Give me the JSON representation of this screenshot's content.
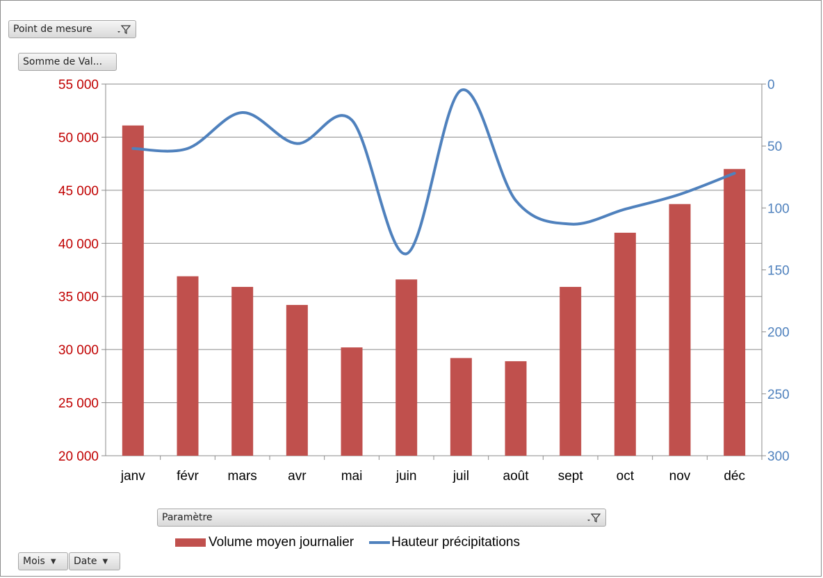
{
  "pivot": {
    "report_filter": "Point de mesure",
    "values_field": "Somme de Val...",
    "legend_field": "Paramètre",
    "axis_fields": [
      "Mois",
      "Date"
    ]
  },
  "colors": {
    "bar": "#c0504d",
    "line": "#4f81bd",
    "left_axis": "#c00000",
    "right_axis": "#4f81bd"
  },
  "chart_data": {
    "type": "bar",
    "categories": [
      "janv",
      "févr",
      "mars",
      "avr",
      "mai",
      "juin",
      "juil",
      "août",
      "sept",
      "oct",
      "nov",
      "déc"
    ],
    "series": [
      {
        "name": "Volume moyen journalier",
        "type": "bar",
        "axis": "left",
        "values": [
          51100,
          36900,
          35900,
          34200,
          30200,
          36600,
          29200,
          28900,
          35900,
          41000,
          43700,
          47000
        ]
      },
      {
        "name": "Hauteur précipitations",
        "type": "line",
        "axis": "right",
        "smooth": true,
        "values": [
          52,
          52,
          23,
          48,
          29,
          137,
          5,
          94,
          113,
          101,
          89,
          72
        ]
      }
    ],
    "y_left": {
      "min": 20000,
      "max": 55000,
      "step": 5000,
      "tick_labels": [
        "20 000",
        "25 000",
        "30 000",
        "35 000",
        "40 000",
        "45 000",
        "50 000",
        "55 000"
      ]
    },
    "y_right": {
      "min": 0,
      "max": 300,
      "step": 50,
      "reversed": true,
      "tick_labels": [
        "0",
        "50",
        "100",
        "150",
        "200",
        "250",
        "300"
      ]
    },
    "grid": true,
    "legend_position": "bottom"
  }
}
